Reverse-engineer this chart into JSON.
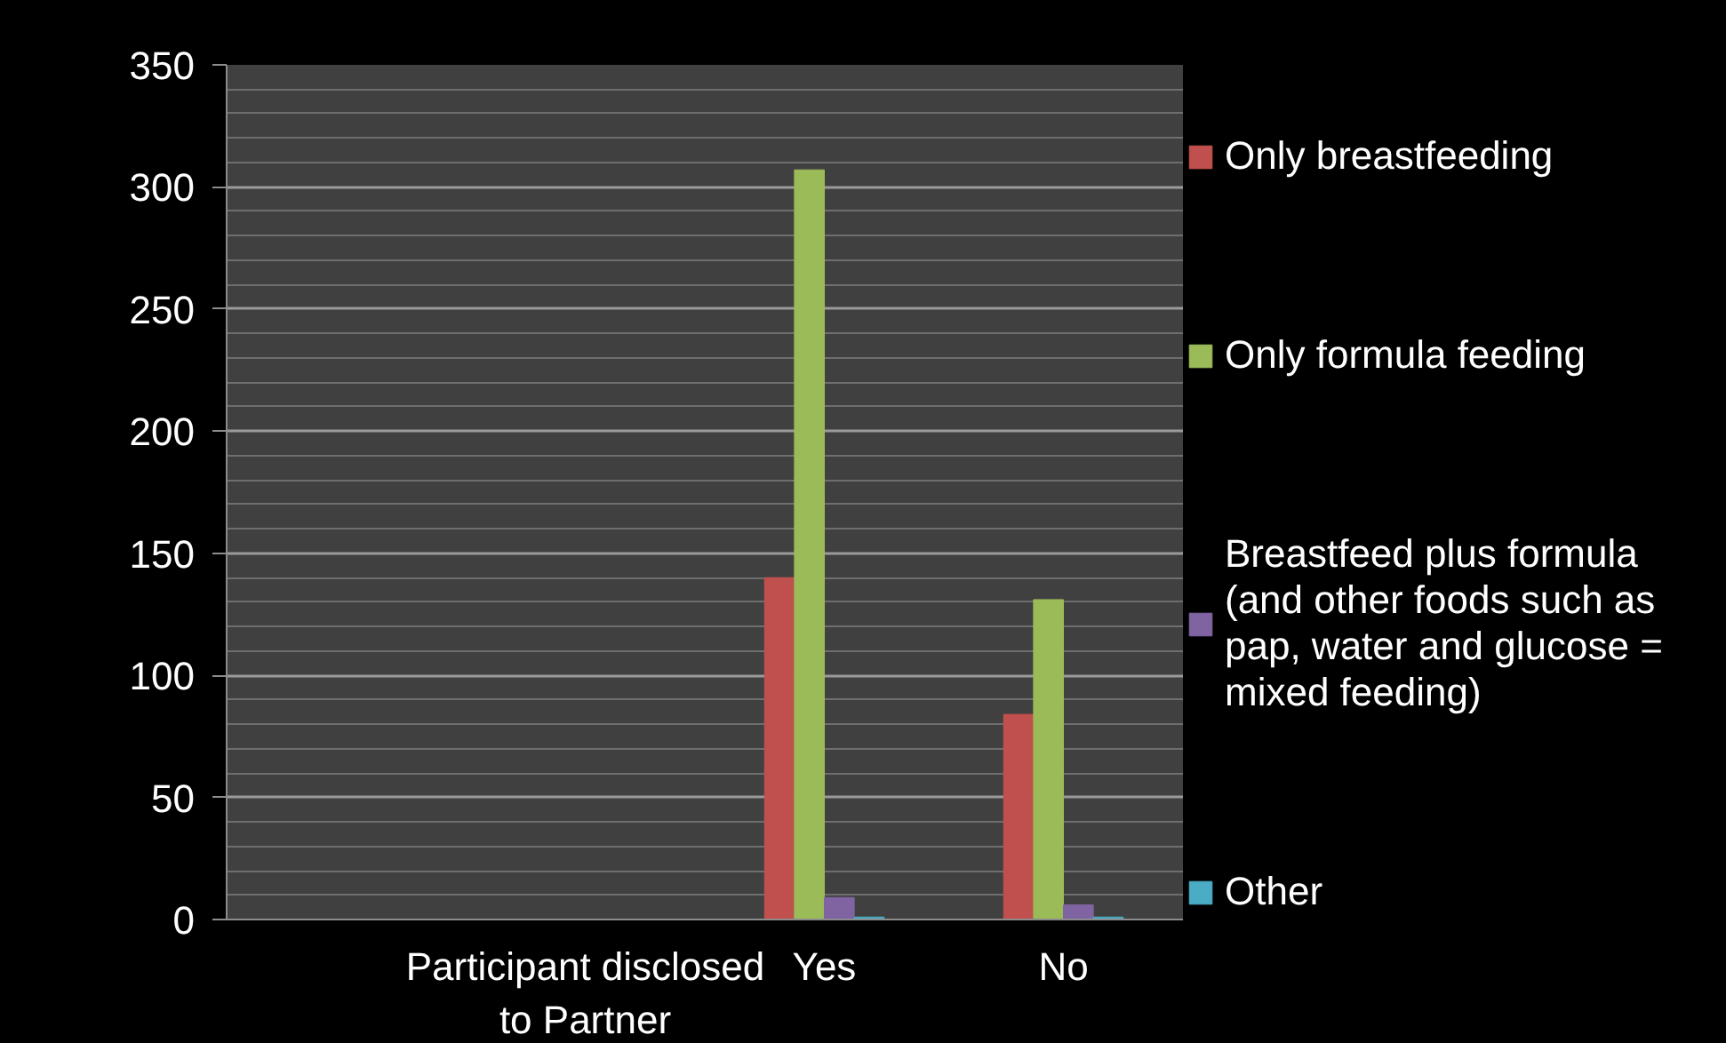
{
  "chart_data": {
    "type": "bar",
    "categories": [
      null,
      "Participant disclosed to Partner",
      "Yes",
      "No"
    ],
    "series": [
      {
        "name": "Only breastfeeding",
        "color": "#c0504d",
        "values": [
          null,
          null,
          140,
          84
        ]
      },
      {
        "name": "Only formula feeding",
        "color": "#9bbb59",
        "values": [
          null,
          null,
          307,
          131
        ]
      },
      {
        "name": "Breastfeed plus formula (and other foods such as pap, water and glucose = mixed feeding)",
        "color": "#8064a2",
        "values": [
          null,
          null,
          9,
          6
        ]
      },
      {
        "name": "Other",
        "color": "#4bacc6",
        "values": [
          null,
          null,
          1,
          1
        ]
      }
    ],
    "ylim": [
      0,
      350
    ],
    "yticks": [
      0,
      50,
      100,
      150,
      200,
      250,
      300,
      350
    ],
    "grid": "y",
    "legend": "right"
  }
}
